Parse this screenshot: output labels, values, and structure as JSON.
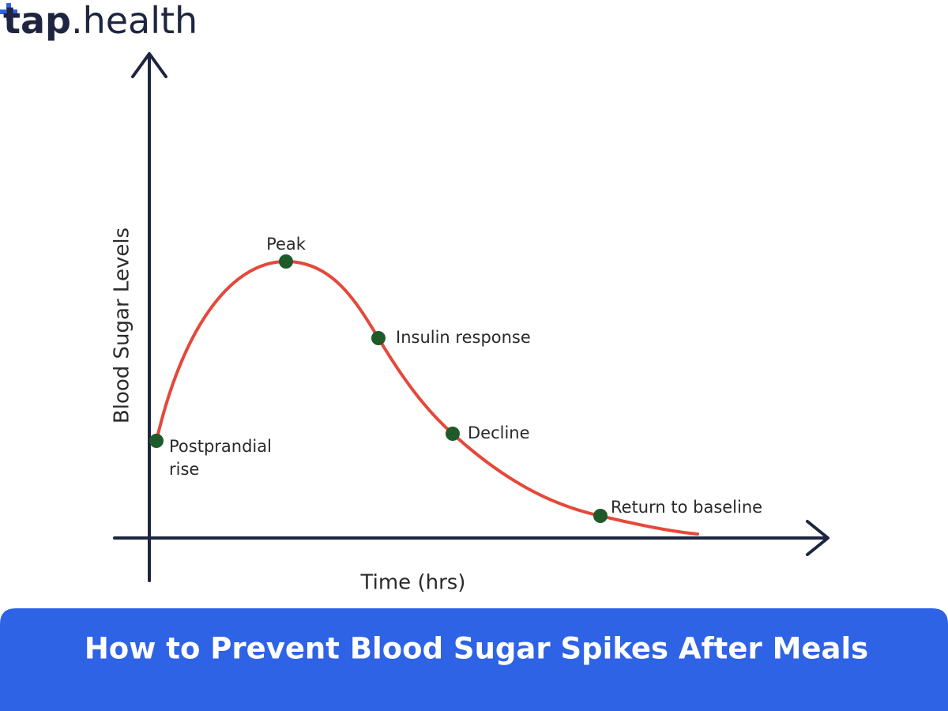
{
  "brand": {
    "name": "tap",
    "suffix": ".health"
  },
  "diagram": {
    "y_axis_label": "Blood Sugar Levels",
    "x_axis_label": "Time (hrs)",
    "points": [
      {
        "label_lines": [
          "Postprandial",
          "rise"
        ]
      },
      {
        "label_lines": [
          "Peak"
        ]
      },
      {
        "label_lines": [
          "Insulin response"
        ]
      },
      {
        "label_lines": [
          "Decline"
        ]
      },
      {
        "label_lines": [
          "Return to baseline"
        ]
      }
    ]
  },
  "banner": {
    "title": "How to Prevent Blood Sugar Spikes After Meals"
  }
}
